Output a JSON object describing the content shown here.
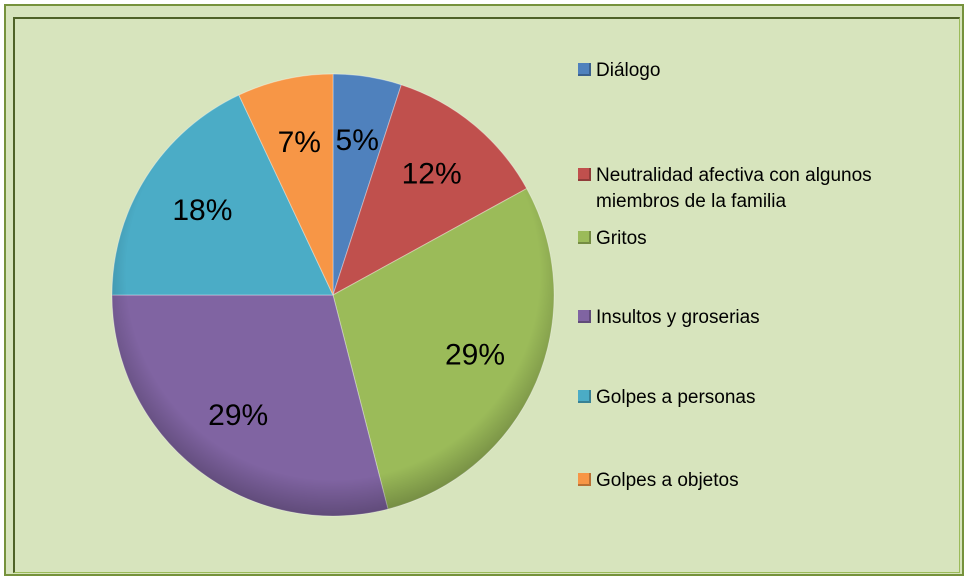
{
  "chart_data": {
    "type": "pie",
    "categories": [
      "Diálogo",
      "Neutralidad afectiva con algunos miembros de la familia",
      "Gritos",
      "Insultos y groserias",
      "Golpes a personas",
      "Golpes a objetos"
    ],
    "values": [
      5,
      12,
      29,
      29,
      18,
      7
    ],
    "value_labels": [
      "5%",
      "12%",
      "29%",
      "29%",
      "18%",
      "7%"
    ],
    "colors": [
      "#4f81bd",
      "#c0504d",
      "#9bbb59",
      "#8064a2",
      "#4bacc6",
      "#f79646"
    ],
    "legend": "right"
  }
}
